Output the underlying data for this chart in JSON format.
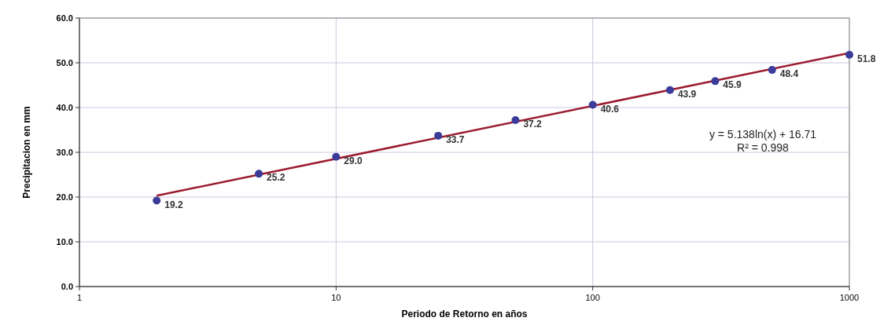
{
  "chart_data": {
    "type": "scatter",
    "xlabel": "Periodo de Retorno en años",
    "ylabel": "Precipitacion en mm",
    "log": "x",
    "xlim": [
      1,
      1000
    ],
    "xticks": [
      1,
      10,
      100,
      1000
    ],
    "ylim": [
      0,
      60
    ],
    "yticks": [
      {
        "value": 0,
        "label": "0.0"
      },
      {
        "value": 10,
        "label": "10.0"
      },
      {
        "value": 20,
        "label": "20.0"
      },
      {
        "value": 30,
        "label": "30.0"
      },
      {
        "value": 40,
        "label": "40.0"
      },
      {
        "value": 50,
        "label": "50.0"
      },
      {
        "value": 60,
        "label": "60.0"
      }
    ],
    "grid": true,
    "series": [
      {
        "marker": "circle",
        "color": "#3b3b9a",
        "x": [
          2,
          5,
          10,
          25,
          50,
          100,
          200,
          300,
          500,
          1000
        ],
        "values": [
          19.2,
          25.2,
          29.0,
          33.7,
          37.2,
          40.6,
          43.9,
          45.9,
          48.4,
          51.8
        ],
        "value_labels": [
          "19.2",
          "25.2",
          "29.0",
          "33.7",
          "37.2",
          "40.6",
          "43.9",
          "45.9",
          "48.4",
          "51.8"
        ]
      },
      {
        "type": "line",
        "color": "#9b1b30",
        "x": [
          2,
          1000
        ],
        "values": [
          20.3,
          52.2
        ],
        "line_style": "solid",
        "marker": "none"
      }
    ],
    "annotations": [
      "y = 5.138ln(x) + 16.71",
      "R² = 0.998"
    ]
  }
}
